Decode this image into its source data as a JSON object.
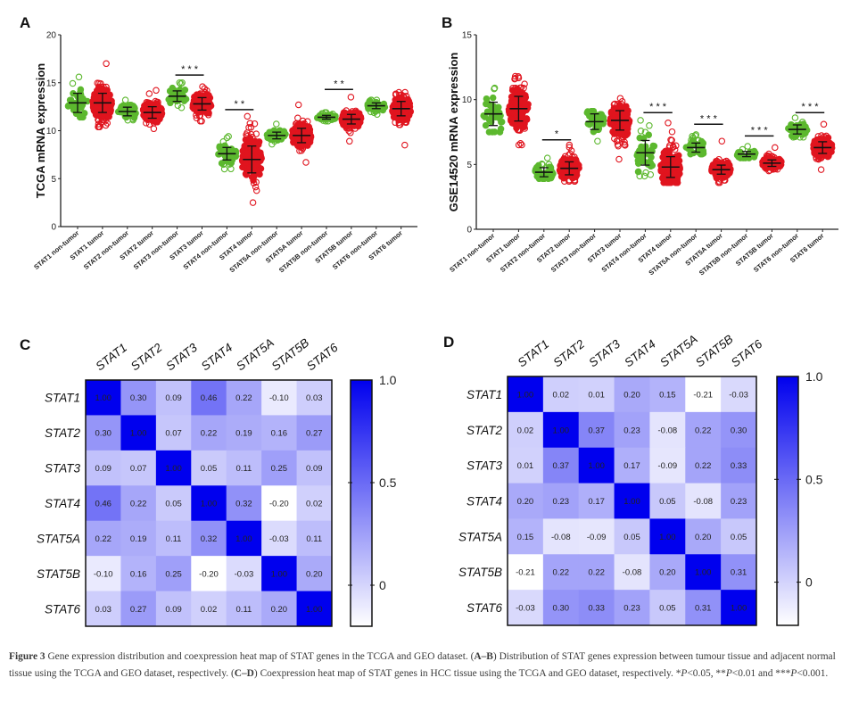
{
  "chart_data": [
    {
      "panel": "A",
      "type": "scatter",
      "subtype": "dot-plot-with-mean-sd",
      "ylabel": "TCGA mRNA expression",
      "ylim": [
        0,
        20
      ],
      "yticks": [
        0,
        5,
        10,
        15,
        20
      ],
      "categories": [
        "STAT1 non-tumor",
        "STAT1 tumor",
        "STAT2 non-tumor",
        "STAT2 tumor",
        "STAT3 non-tumor",
        "STAT3 tumor",
        "STAT4 non-tumor",
        "STAT4 tumor",
        "STAT5A non-tumor",
        "STAT5A tumor",
        "STAT5B non-tumor",
        "STAT5B tumor",
        "STAT6 non-tumor",
        "STAT6 tumor"
      ],
      "series": [
        {
          "name": "non-tumor",
          "color": "#5cb82e",
          "means": [
            12.9,
            null,
            12.0,
            null,
            13.6,
            null,
            7.6,
            null,
            9.5,
            null,
            11.4,
            null,
            12.6,
            null
          ],
          "sd": [
            1.0,
            null,
            0.45,
            null,
            0.55,
            null,
            0.65,
            null,
            0.35,
            null,
            0.2,
            null,
            0.3,
            null
          ],
          "min": [
            11.4,
            null,
            11.1,
            null,
            12.4,
            null,
            6.0,
            null,
            8.6,
            null,
            11.0,
            null,
            11.7,
            null
          ],
          "max": [
            15.6,
            null,
            13.2,
            null,
            15.0,
            null,
            9.4,
            null,
            10.7,
            null,
            11.9,
            null,
            13.2,
            null
          ]
        },
        {
          "name": "tumor",
          "color": "#e0141e",
          "means": [
            null,
            12.9,
            null,
            11.9,
            null,
            12.8,
            null,
            7.0,
            null,
            9.5,
            null,
            11.2,
            null,
            12.3
          ],
          "sd": [
            null,
            1.0,
            null,
            0.6,
            null,
            0.65,
            null,
            1.4,
            null,
            0.75,
            null,
            0.5,
            null,
            0.75
          ],
          "min": [
            null,
            10.4,
            null,
            10.2,
            null,
            11.0,
            null,
            2.5,
            null,
            6.7,
            null,
            8.9,
            null,
            8.5
          ],
          "max": [
            null,
            17.0,
            null,
            14.2,
            null,
            14.6,
            null,
            11.5,
            null,
            12.7,
            null,
            13.5,
            null,
            14.0
          ]
        }
      ],
      "significance": [
        {
          "pair": [
            4,
            5
          ],
          "label": "* * *",
          "y": 15.8
        },
        {
          "pair": [
            6,
            7
          ],
          "label": "* *",
          "y": 12.2
        },
        {
          "pair": [
            10,
            11
          ],
          "label": "* *",
          "y": 14.3
        }
      ]
    },
    {
      "panel": "B",
      "type": "scatter",
      "subtype": "dot-plot-with-mean-sd",
      "ylabel": "GSE14520 mRNA expression",
      "ylim": [
        0,
        15
      ],
      "yticks": [
        0,
        5,
        10,
        15
      ],
      "categories": [
        "STAT1 non-tumor",
        "STAT1 tumor",
        "STAT2 non-tumor",
        "STAT2 tumor",
        "STAT3 non-tumor",
        "STAT3 tumor",
        "STAT4 non-tumor",
        "STAT4 tumor",
        "STAT5A non-tumor",
        "STAT5A tumor",
        "STAT5B non-tumor",
        "STAT5B tumor",
        "STAT6 non-tumor",
        "STAT6 tumor"
      ],
      "series": [
        {
          "name": "non-tumor",
          "color": "#5cb82e",
          "means": [
            8.9,
            null,
            4.4,
            null,
            8.3,
            null,
            5.9,
            null,
            6.3,
            null,
            5.8,
            null,
            7.7,
            null
          ],
          "sd": [
            0.9,
            null,
            0.35,
            null,
            0.6,
            null,
            0.95,
            null,
            0.35,
            null,
            0.2,
            null,
            0.35,
            null
          ],
          "min": [
            7.5,
            null,
            3.9,
            null,
            6.8,
            null,
            4.1,
            null,
            5.8,
            null,
            5.5,
            null,
            7.1,
            null
          ],
          "max": [
            10.9,
            null,
            5.5,
            null,
            9.1,
            null,
            8.4,
            null,
            7.3,
            null,
            6.4,
            null,
            8.6,
            null
          ]
        },
        {
          "name": "tumor",
          "color": "#e0141e",
          "means": [
            null,
            9.3,
            null,
            4.7,
            null,
            8.4,
            null,
            4.8,
            null,
            4.6,
            null,
            5.1,
            null,
            6.3
          ],
          "sd": [
            null,
            0.95,
            null,
            0.5,
            null,
            0.75,
            null,
            0.8,
            null,
            0.35,
            null,
            0.25,
            null,
            0.45
          ],
          "min": [
            null,
            6.5,
            null,
            3.7,
            null,
            5.4,
            null,
            3.6,
            null,
            3.6,
            null,
            4.5,
            null,
            4.6
          ],
          "max": [
            null,
            11.8,
            null,
            6.5,
            null,
            10.1,
            null,
            8.2,
            null,
            6.8,
            null,
            6.3,
            null,
            8.1
          ]
        }
      ],
      "significance": [
        {
          "pair": [
            2,
            3
          ],
          "label": "*",
          "y": 6.9
        },
        {
          "pair": [
            6,
            7
          ],
          "label": "* * *",
          "y": 9.0
        },
        {
          "pair": [
            8,
            9
          ],
          "label": "* * *",
          "y": 8.1
        },
        {
          "pair": [
            10,
            11
          ],
          "label": "* * *",
          "y": 7.2
        },
        {
          "pair": [
            12,
            13
          ],
          "label": "* * *",
          "y": 9.0
        }
      ]
    },
    {
      "panel": "C",
      "type": "heatmap",
      "title": "",
      "labels": [
        "STAT1",
        "STAT2",
        "STAT3",
        "STAT4",
        "STAT5A",
        "STAT5B",
        "STAT6"
      ],
      "matrix": [
        [
          1.0,
          0.3,
          0.09,
          0.46,
          0.22,
          -0.1,
          0.03
        ],
        [
          0.3,
          1.0,
          0.07,
          0.22,
          0.19,
          0.16,
          0.27
        ],
        [
          0.09,
          0.07,
          1.0,
          0.05,
          0.11,
          0.25,
          0.09
        ],
        [
          0.46,
          0.22,
          0.05,
          1.0,
          0.32,
          -0.2,
          0.02
        ],
        [
          0.22,
          0.19,
          0.11,
          0.32,
          1.0,
          -0.03,
          0.11
        ],
        [
          -0.1,
          0.16,
          0.25,
          -0.2,
          -0.03,
          1.0,
          0.2
        ],
        [
          0.03,
          0.27,
          0.09,
          0.02,
          0.11,
          0.2,
          1.0
        ]
      ],
      "value_labels": [
        [
          "1.00",
          "0.30",
          "0.09",
          "0.46",
          "0.22",
          "-0.10",
          "0.03"
        ],
        [
          "0.30",
          "1.00",
          "0.07",
          "0.22",
          "0.19",
          "0.16",
          "0.27"
        ],
        [
          "0.09",
          "0.07",
          "1.00",
          "0.05",
          "0.11",
          "0.25",
          "0.09"
        ],
        [
          "0.46",
          "0.22",
          "0.05",
          "1.00",
          "0.32",
          "-0.20",
          "0.02"
        ],
        [
          "0.22",
          "0.19",
          "0.11",
          "0.32",
          "1.00",
          "-0.03",
          "0.11"
        ],
        [
          "-0.10",
          "0.16",
          "0.25",
          "-0.20",
          "-0.03",
          "1.00",
          "0.20"
        ],
        [
          "0.03",
          "0.27",
          "0.09",
          "0.02",
          "0.11",
          "0.20",
          "1.00"
        ]
      ],
      "colorbar": {
        "range": [
          -0.2,
          1.0
        ],
        "ticks": [
          "0",
          "0.5",
          "1.0"
        ],
        "tick_values": [
          0,
          0.5,
          1.0
        ],
        "low_color": "#ffffff",
        "high_color": "#0000ee"
      }
    },
    {
      "panel": "D",
      "type": "heatmap",
      "title": "",
      "labels": [
        "STAT1",
        "STAT2",
        "STAT3",
        "STAT4",
        "STAT5A",
        "STAT5B",
        "STAT6"
      ],
      "matrix": [
        [
          1.0,
          0.02,
          0.01,
          0.2,
          0.15,
          -0.21,
          -0.03
        ],
        [
          0.02,
          1.0,
          0.37,
          0.23,
          -0.08,
          0.22,
          0.3
        ],
        [
          0.01,
          0.37,
          1.0,
          0.17,
          -0.09,
          0.22,
          0.33
        ],
        [
          0.2,
          0.23,
          0.17,
          1.0,
          0.05,
          -0.08,
          0.23
        ],
        [
          0.15,
          -0.08,
          -0.09,
          0.05,
          1.0,
          0.2,
          0.05
        ],
        [
          -0.21,
          0.22,
          0.22,
          -0.08,
          0.2,
          1.0,
          0.31
        ],
        [
          -0.03,
          0.3,
          0.33,
          0.23,
          0.05,
          0.31,
          1.0
        ]
      ],
      "value_labels": [
        [
          "1.00",
          "0.02",
          "0.01",
          "0.20",
          "0.15",
          "-0.21",
          "-0.03"
        ],
        [
          "0.02",
          "1.00",
          "0.37",
          "0.23",
          "-0.08",
          "0.22",
          "0.30"
        ],
        [
          "0.01",
          "0.37",
          "1.00",
          "0.17",
          "-0.09",
          "0.22",
          "0.33"
        ],
        [
          "0.20",
          "0.23",
          "0.17",
          "1.00",
          "0.05",
          "-0.08",
          "0.23"
        ],
        [
          "0.15",
          "-0.08",
          "-0.09",
          "0.05",
          "1.00",
          "0.20",
          "0.05"
        ],
        [
          "-0.21",
          "0.22",
          "0.22",
          "-0.08",
          "0.20",
          "1.00",
          "0.31"
        ],
        [
          "-0.03",
          "0.30",
          "0.33",
          "0.23",
          "0.05",
          "0.31",
          "1.00"
        ]
      ],
      "colorbar": {
        "range": [
          -0.21,
          1.0
        ],
        "ticks": [
          "0",
          "0.5",
          "1.0"
        ],
        "tick_values": [
          0,
          0.5,
          1.0
        ],
        "low_color": "#ffffff",
        "high_color": "#0000ee"
      }
    }
  ],
  "panel_letters": [
    "A",
    "B",
    "C",
    "D"
  ],
  "caption": {
    "figure_label": "Figure 3",
    "text_1": " Gene expression distribution and coexpression heat map of STAT genes in the TCGA and GEO dataset. (",
    "ref_ab": "A–B",
    "text_2": ") Distribution of STAT genes expression between tumour tissue and adjacent normal tissue using the TCGA and GEO dataset, respectively. (",
    "ref_cd": "C–D",
    "text_3": ") Coexpression heat map of STAT genes in HCC tissue using the TCGA and GEO dataset, respectively. *",
    "p1": "P",
    "text_4": "<0.05, **",
    "p2": "P",
    "text_5": "<0.01 and ***",
    "p3": "P",
    "text_6": "<0.001."
  }
}
